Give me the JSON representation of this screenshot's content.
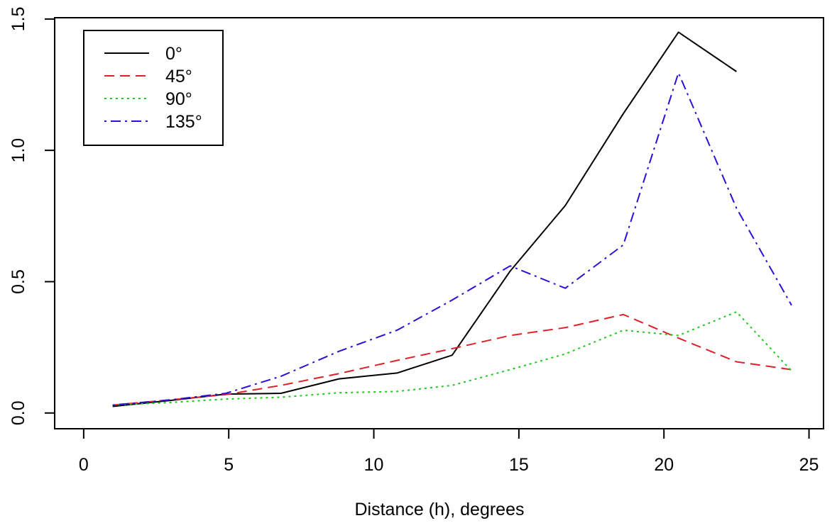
{
  "chart_data": {
    "type": "line",
    "title": "",
    "xlabel": "Distance (h), degrees",
    "ylabel": "",
    "xlim": [
      -1,
      25.5
    ],
    "ylim": [
      -0.06,
      1.505
    ],
    "xticks": [
      0,
      5,
      10,
      15,
      20,
      25
    ],
    "yticks": [
      0.0,
      0.5,
      1.0,
      1.5
    ],
    "xtick_labels": [
      "0",
      "5",
      "10",
      "15",
      "20",
      "25"
    ],
    "ytick_labels": [
      "0.0",
      "0.5",
      "1.0",
      "1.5"
    ],
    "grid": false,
    "legend_position": "top-left",
    "series": [
      {
        "name": "0°",
        "color": "#000000",
        "dash": "solid",
        "x": [
          1.0,
          3.0,
          4.9,
          6.8,
          8.8,
          10.8,
          12.7,
          14.7,
          16.6,
          18.6,
          20.5,
          22.5
        ],
        "y": [
          0.025,
          0.048,
          0.072,
          0.075,
          0.13,
          0.152,
          0.22,
          0.54,
          0.79,
          1.14,
          1.45,
          1.3
        ]
      },
      {
        "name": "45°",
        "color": "#e0202a",
        "dash": "dashed",
        "x": [
          1.0,
          3.0,
          4.9,
          6.8,
          8.8,
          10.8,
          12.7,
          14.7,
          16.6,
          18.6,
          20.5,
          22.5,
          24.4
        ],
        "y": [
          0.03,
          0.05,
          0.07,
          0.105,
          0.15,
          0.2,
          0.245,
          0.295,
          0.325,
          0.375,
          0.285,
          0.195,
          0.165
        ]
      },
      {
        "name": "90°",
        "color": "#1ec81e",
        "dash": "dotted",
        "x": [
          1.0,
          3.0,
          4.9,
          6.8,
          8.8,
          10.8,
          12.7,
          14.7,
          16.6,
          18.6,
          20.5,
          22.5,
          24.4
        ],
        "y": [
          0.03,
          0.04,
          0.053,
          0.06,
          0.077,
          0.082,
          0.105,
          0.165,
          0.225,
          0.315,
          0.295,
          0.385,
          0.16
        ]
      },
      {
        "name": "135°",
        "color": "#2a10d8",
        "dash": "dashdot",
        "x": [
          1.0,
          3.0,
          4.9,
          6.8,
          8.8,
          10.8,
          12.7,
          14.7,
          16.6,
          18.6,
          20.5,
          22.5,
          24.4
        ],
        "y": [
          0.03,
          0.05,
          0.075,
          0.14,
          0.235,
          0.315,
          0.43,
          0.56,
          0.475,
          0.64,
          1.295,
          0.78,
          0.41
        ]
      }
    ]
  }
}
